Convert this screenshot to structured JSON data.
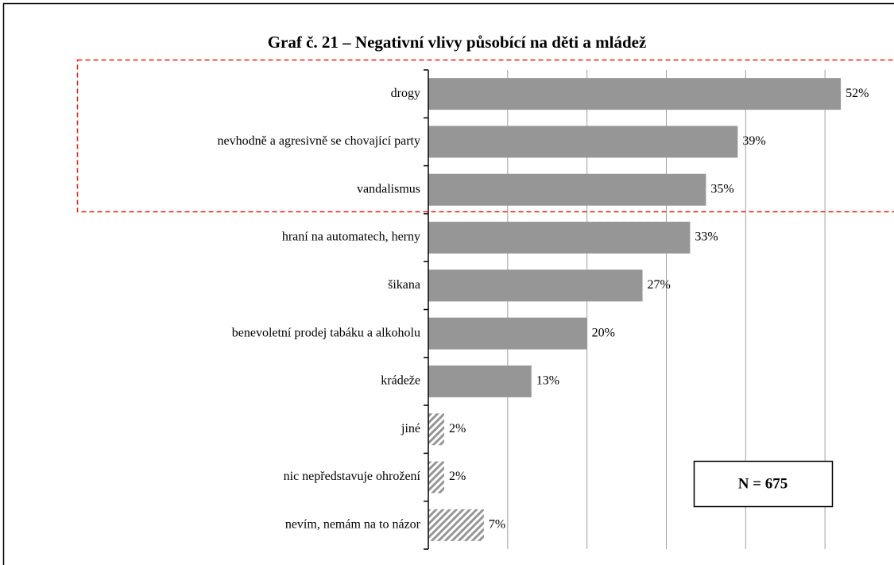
{
  "chart_data": {
    "type": "bar",
    "orientation": "horizontal",
    "title": "Graf č. 21 – Negativní vlivy působící na děti a mládež",
    "categories": [
      "drogy",
      "nevhodně a agresivně se chovající party",
      "vandalismus",
      "hraní na automatech, herny",
      "šikana",
      "benevoletní prodej tabáku a alkoholu",
      "krádeže",
      "jiné",
      "nic nepředstavuje ohrožení",
      "nevím, nemám na to názor"
    ],
    "values": [
      52,
      39,
      35,
      33,
      27,
      20,
      13,
      2,
      2,
      7
    ],
    "value_labels": [
      "52%",
      "39%",
      "35%",
      "33%",
      "27%",
      "20%",
      "13%",
      "2%",
      "2%",
      "7%"
    ],
    "color": "#969696",
    "patterns": [
      "solid",
      "solid",
      "solid",
      "solid",
      "solid",
      "solid",
      "solid",
      "hatch",
      "hatch",
      "hatch"
    ],
    "xlim": [
      0,
      58
    ],
    "xticks": [
      10,
      20,
      30,
      40,
      50
    ],
    "grid": true,
    "annotation": "N = 675"
  }
}
